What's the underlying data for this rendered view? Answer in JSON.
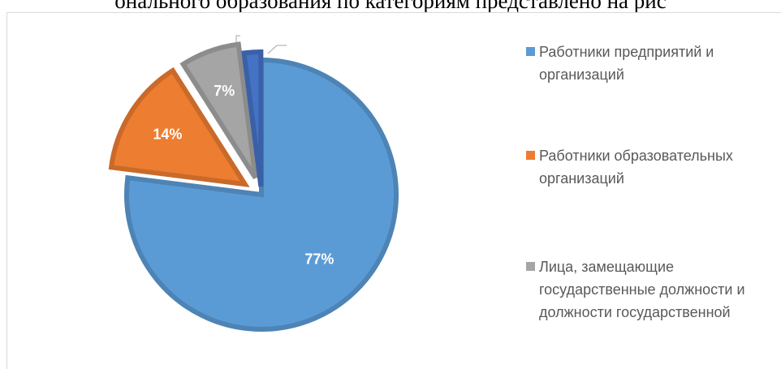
{
  "caption": "онального образования по категориям представлено на рис",
  "chart_data": {
    "type": "pie",
    "series": [
      {
        "name": "Работники предприятий и организаций",
        "color": "#5b9bd5",
        "values": [
          77
        ],
        "value_labels": [
          "77%"
        ]
      },
      {
        "name": "Работники образовательных организаций",
        "color": "#ed7d31",
        "values": [
          14
        ],
        "value_labels": [
          "14%"
        ]
      },
      {
        "name": "Лица, замещающие государственные должности и должности государственной",
        "color": "#a5a5a5",
        "values": [
          7
        ],
        "value_labels": [
          "7%"
        ]
      },
      {
        "name": null,
        "color": "#4472c4",
        "values": [
          2
        ],
        "value_labels": [
          null
        ]
      }
    ],
    "legend": "right"
  }
}
